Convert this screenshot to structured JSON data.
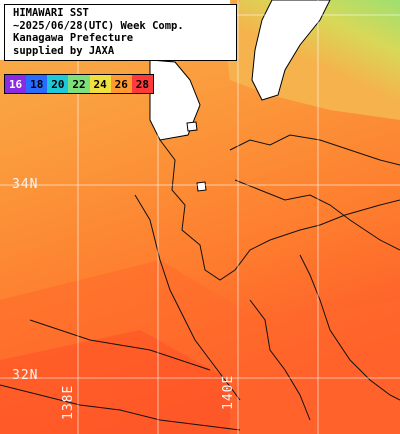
{
  "info": {
    "line1": "HIMAWARI SST",
    "line2": "~2025/06/28(UTC) Week Comp.",
    "line3": "Kanagawa Prefecture",
    "line4": "supplied by JAXA"
  },
  "legend": [
    {
      "label": "16",
      "color": "#8a2be2"
    },
    {
      "label": "18",
      "color": "#2a6bff"
    },
    {
      "label": "20",
      "color": "#1ec8d8"
    },
    {
      "label": "22",
      "color": "#7ee07a"
    },
    {
      "label": "24",
      "color": "#f0e040"
    },
    {
      "label": "26",
      "color": "#ff9a30"
    },
    {
      "label": "28",
      "color": "#ff3a3a"
    }
  ],
  "grid": {
    "lat_labels": [
      "34N",
      "32N"
    ],
    "lon_labels": [
      "138E",
      "140E"
    ]
  },
  "colors": {
    "sea_warm": "#ff7a2a",
    "sea_mid": "#ff9a3a",
    "sea_cool": "#f8b04a",
    "coast_cool": "#b8e060",
    "land": "#ffffff"
  }
}
